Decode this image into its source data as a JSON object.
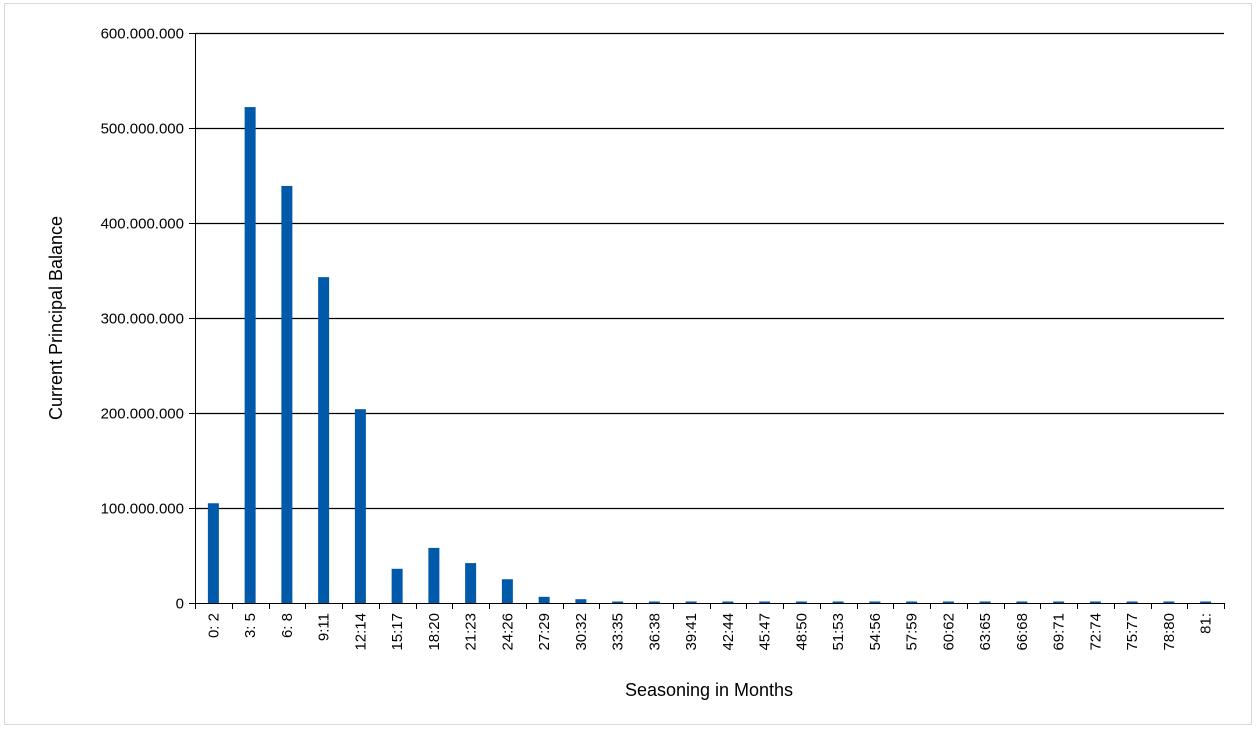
{
  "chart_data": {
    "type": "bar",
    "title": "",
    "xlabel": "Seasoning in Months",
    "ylabel": "Current Principal Balance",
    "ylim": [
      0,
      600000000
    ],
    "yticks": [
      0,
      100000000,
      200000000,
      300000000,
      400000000,
      500000000,
      600000000
    ],
    "ytick_labels": [
      "0",
      "100.000.000",
      "200.000.000",
      "300.000.000",
      "400.000.000",
      "500.000.000",
      "600.000.000"
    ],
    "grid": true,
    "legend": "none",
    "bar_color": "#0059a9",
    "categories": [
      "0: 2",
      "3: 5",
      "6: 8",
      "9:11",
      "12:14",
      "15:17",
      "18:20",
      "21:23",
      "24:26",
      "27:29",
      "30:32",
      "33:35",
      "36:38",
      "39:41",
      "42:44",
      "45:47",
      "48:50",
      "51:53",
      "54:56",
      "57:59",
      "60:62",
      "63:65",
      "66:68",
      "69:71",
      "72:74",
      "75:77",
      "78:80",
      "81:"
    ],
    "values": [
      105000000,
      522000000,
      439000000,
      343000000,
      204000000,
      36000000,
      58000000,
      42000000,
      25000000,
      6500000,
      4000000,
      1500000,
      1200000,
      1000000,
      1000000,
      1000000,
      1000000,
      1000000,
      1000000,
      1000000,
      1000000,
      1000000,
      1000000,
      1000000,
      1000000,
      1000000,
      1000000,
      1000000
    ]
  }
}
